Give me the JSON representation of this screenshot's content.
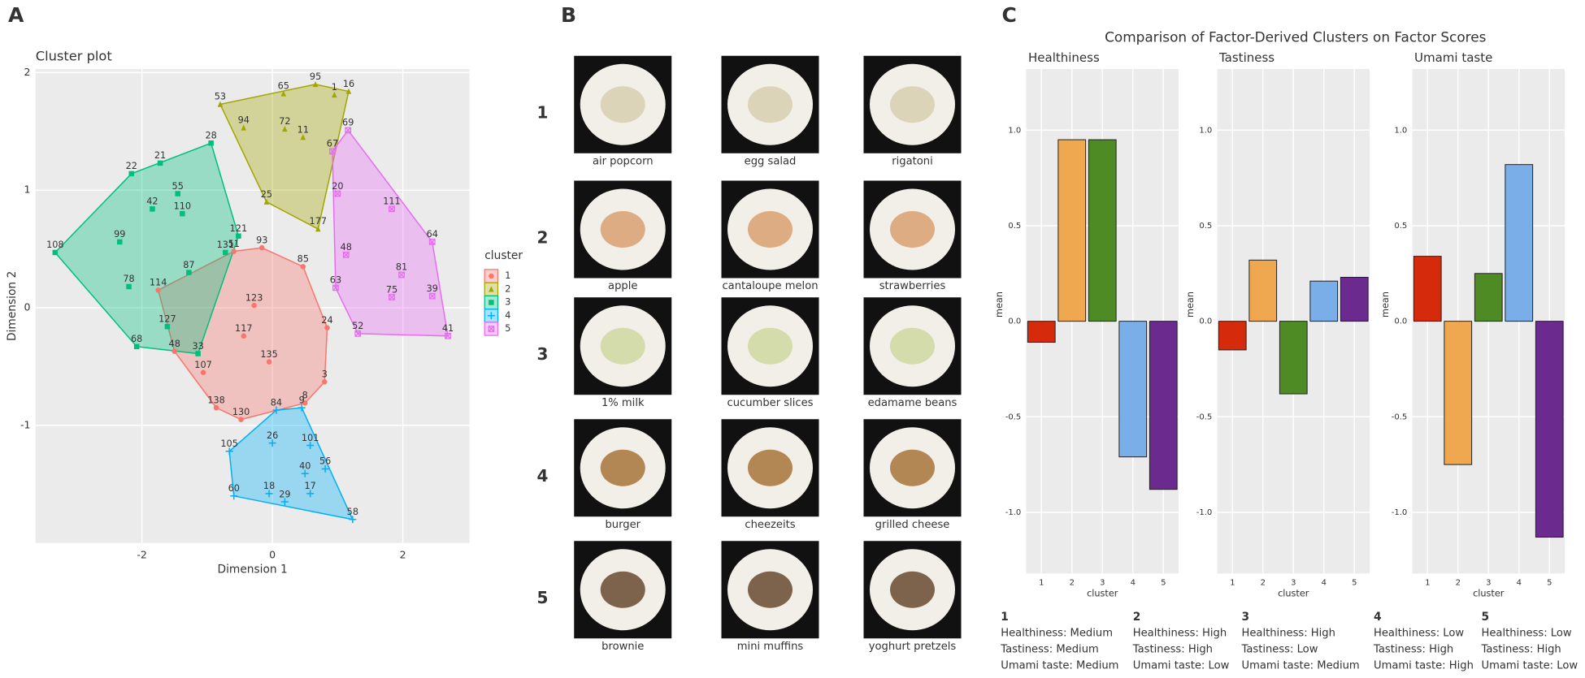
{
  "panels": [
    "A",
    "B",
    "C"
  ],
  "panel_c_title": "Comparison of Factor-Derived Clusters on Factor Scores",
  "chart_data": [
    {
      "type": "scatter",
      "title": "Cluster plot",
      "x_label": "Dimension 1",
      "y_label": "Dimension 2",
      "legend_title": "cluster",
      "grid": true,
      "xlim": [
        -3.63,
        3.02
      ],
      "ylim": [
        -2.0,
        2.03
      ],
      "xticks": [
        -2,
        0,
        2
      ],
      "yticks": [
        -1,
        0,
        1,
        2
      ],
      "series": [
        {
          "name": "1",
          "color": "#F8766D",
          "marker": "circle",
          "x": [
            -1.75,
            -0.59,
            -0.16,
            0.47,
            0.84,
            0.8,
            0.5,
            -0.48,
            -0.86,
            -1.5,
            -0.44,
            -0.05,
            -1.06,
            -0.28
          ],
          "y": [
            0.15,
            0.48,
            0.51,
            0.35,
            -0.17,
            -0.63,
            -0.81,
            -0.95,
            -0.85,
            -0.37,
            -0.24,
            -0.46,
            -0.55,
            0.02
          ],
          "point_labels": [
            "114",
            "51",
            "93",
            "85",
            "24",
            "3",
            "8",
            "130",
            "138",
            "48",
            "117",
            "135",
            "107",
            "123"
          ]
        },
        {
          "name": "2",
          "color": "#A3A500",
          "marker": "triangle",
          "x": [
            -0.8,
            0.66,
            1.17,
            0.17,
            0.7,
            -0.09,
            -0.44,
            0.19,
            0.47,
            0.95
          ],
          "y": [
            1.73,
            1.9,
            1.84,
            1.82,
            0.67,
            0.9,
            1.53,
            1.52,
            1.45,
            1.81
          ],
          "point_labels": [
            "53",
            "95",
            "16",
            "65",
            "177",
            "25",
            "94",
            "72",
            "11",
            "1"
          ]
        },
        {
          "name": "3",
          "color": "#00BF7D",
          "marker": "square",
          "x": [
            -3.33,
            -2.16,
            -0.94,
            -0.52,
            -0.72,
            -2.08,
            -1.14,
            -2.34,
            -2.2,
            -1.84,
            -1.38,
            -1.28,
            -1.45,
            -1.72,
            -1.61
          ],
          "y": [
            0.47,
            1.14,
            1.4,
            0.61,
            0.47,
            -0.33,
            -0.39,
            0.56,
            0.18,
            0.84,
            0.8,
            0.3,
            0.97,
            1.23,
            -0.16
          ],
          "point_labels": [
            "108",
            "22",
            "28",
            "121",
            "131",
            "68",
            "33",
            "99",
            "78",
            "42",
            "110",
            "87",
            "55",
            "21",
            "127"
          ]
        },
        {
          "name": "4",
          "color": "#00B0F6",
          "marker": "plus",
          "x": [
            0.45,
            0.06,
            -0.66,
            -0.59,
            1.23,
            0.81,
            0.58,
            0,
            -0.05,
            0.5,
            0.58,
            0.19
          ],
          "y": [
            -0.85,
            -0.87,
            -1.22,
            -1.6,
            -1.8,
            -1.37,
            -1.17,
            -1.15,
            -1.58,
            -1.41,
            -1.58,
            -1.65
          ],
          "point_labels": [
            "9",
            "84",
            "105",
            "60",
            "58",
            "56",
            "101",
            "26",
            "18",
            "40",
            "17",
            "29"
          ]
        },
        {
          "name": "5",
          "color": "#E76BF3",
          "marker": "boxx",
          "x": [
            1.16,
            0.92,
            1.0,
            1.83,
            2.45,
            2.69,
            1.31,
            1.13,
            1.83,
            1.98,
            2.45,
            0.97
          ],
          "y": [
            1.51,
            1.33,
            0.97,
            0.84,
            0.56,
            -0.24,
            -0.22,
            0.45,
            0.09,
            0.28,
            0.1,
            0.17
          ],
          "point_labels": [
            "69",
            "67",
            "20",
            "111",
            "64",
            "41",
            "52",
            "48",
            "75",
            "81",
            "39",
            "63"
          ]
        }
      ]
    },
    {
      "type": "bar",
      "title": "Healthiness",
      "x_label": "cluster",
      "y_label": "mean",
      "categories": [
        "1",
        "2",
        "3",
        "4",
        "5"
      ],
      "values": [
        -0.11,
        0.95,
        0.95,
        -0.71,
        -0.88
      ],
      "colors": [
        "#D52B0C",
        "#F0A850",
        "#4E8B24",
        "#7AAEE8",
        "#6A2A8E"
      ],
      "ylim": [
        -1.32,
        1.32
      ],
      "grid": true,
      "yticks": [
        {
          "value": -1,
          "label": "-1.0"
        },
        {
          "value": -0.5,
          "label": "-0.5"
        },
        {
          "value": 0,
          "label": "0.0"
        },
        {
          "value": 0.5,
          "label": "0.5"
        },
        {
          "value": 1,
          "label": "1.0"
        }
      ]
    },
    {
      "type": "bar",
      "title": "Tastiness",
      "x_label": "cluster",
      "y_label": "mean",
      "categories": [
        "1",
        "2",
        "3",
        "4",
        "5"
      ],
      "values": [
        -0.15,
        0.32,
        -0.38,
        0.21,
        0.23
      ],
      "colors": [
        "#D52B0C",
        "#F0A850",
        "#4E8B24",
        "#7AAEE8",
        "#6A2A8E"
      ],
      "ylim": [
        -1.32,
        1.32
      ],
      "grid": true,
      "yticks": [
        {
          "value": -1,
          "label": "-1.0"
        },
        {
          "value": -0.5,
          "label": "-0.5"
        },
        {
          "value": 0,
          "label": "0.0"
        },
        {
          "value": 0.5,
          "label": "0.5"
        },
        {
          "value": 1,
          "label": "1.0"
        }
      ]
    },
    {
      "type": "bar",
      "title": "Umami taste",
      "x_label": "cluster",
      "y_label": "mean",
      "categories": [
        "1",
        "2",
        "3",
        "4",
        "5"
      ],
      "values": [
        0.34,
        -0.75,
        0.25,
        0.82,
        -1.13
      ],
      "colors": [
        "#D52B0C",
        "#F0A850",
        "#4E8B24",
        "#7AAEE8",
        "#6A2A8E"
      ],
      "ylim": [
        -1.32,
        1.32
      ],
      "grid": true,
      "yticks": [
        {
          "value": -1,
          "label": "-1.0"
        },
        {
          "value": -0.5,
          "label": "-0.5"
        },
        {
          "value": 0,
          "label": "0.0"
        },
        {
          "value": 0.5,
          "label": "0.5"
        },
        {
          "value": 1,
          "label": "1.0"
        }
      ]
    }
  ],
  "food_grid": {
    "row_labels": [
      "1",
      "2",
      "3",
      "4",
      "5"
    ],
    "row_colors": [
      "#C00000",
      "#B08A00",
      "#4F7A28",
      "#3A5FC4",
      "#6A1A9A"
    ],
    "items": [
      [
        "air popcorn",
        "egg salad",
        "rigatoni"
      ],
      [
        "apple",
        "cantaloupe melon",
        "strawberries"
      ],
      [
        "1% milk",
        "cucumber slices",
        "edamame beans"
      ],
      [
        "burger",
        "cheezeits",
        "grilled cheese"
      ],
      [
        "brownie",
        "mini muffins",
        "yoghurt pretzels"
      ]
    ]
  },
  "cluster_descriptions": [
    {
      "number": "1",
      "color": "#D00000",
      "lines": [
        "Healthiness: Medium",
        "Tastiness: Medium",
        "Umami taste: Medium"
      ]
    },
    {
      "number": "2",
      "color": "#B8960C",
      "lines": [
        "Healthiness: High",
        "Tastiness: High",
        "Umami taste: Low"
      ]
    },
    {
      "number": "3",
      "color": "#4F8A2A",
      "lines": [
        "Healthiness: High",
        "Tastiness: Low",
        "Umami taste: Medium"
      ]
    },
    {
      "number": "4",
      "color": "#3A5FC4",
      "lines": [
        "Healthiness: Low",
        "Tastiness: High",
        "Umami taste: High"
      ]
    },
    {
      "number": "5",
      "color": "#6A1A9A",
      "lines": [
        "Healthiness: Low",
        "Tastiness: High",
        "Umami taste: Low"
      ]
    }
  ]
}
